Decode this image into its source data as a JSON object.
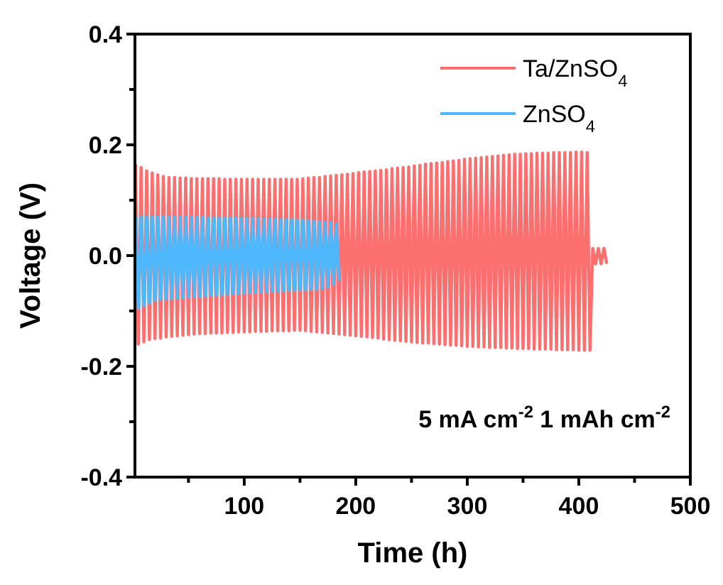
{
  "chart_data": {
    "type": "line",
    "xlabel": "Time (h)",
    "ylabel": "Voltage (V)",
    "xlim": [
      2,
      500
    ],
    "ylim": [
      -0.4,
      0.4
    ],
    "xticks": [
      {
        "value": 50,
        "label": null
      },
      100,
      {
        "value": 150,
        "label": null
      },
      200,
      {
        "value": 250,
        "label": null
      },
      300,
      {
        "value": 350,
        "label": null
      },
      400,
      {
        "value": 450,
        "label": null
      },
      500
    ],
    "yticks": [
      -0.4,
      {
        "value": -0.3,
        "label": null
      },
      -0.2,
      {
        "value": -0.1,
        "label": null
      },
      {
        "value": 0,
        "label": "0.0"
      },
      {
        "value": 0.1,
        "label": null
      },
      0.2,
      {
        "value": 0.3,
        "label": null
      },
      0.4
    ],
    "legend": "top right",
    "annotations": [
      "5 mA cm$^{-2}$ 1 mAh cm$^{-2}$"
    ],
    "series": [
      {
        "name": "Ta/ZnSO$_{4}$",
        "color": "#fb6f6f",
        "x": [
          2.5,
          5,
          7.5,
          10,
          12.5,
          15,
          17.5,
          20,
          22.5,
          25,
          27.5,
          30,
          32.5,
          35,
          37.5,
          40,
          42.5,
          45,
          47.5,
          50,
          52.5,
          55,
          57.5,
          60,
          62.5,
          65,
          67.5,
          70,
          72.5,
          75,
          77.5,
          80,
          82.5,
          85,
          87.5,
          90,
          92.5,
          95,
          97.5,
          100,
          102.5,
          105,
          107.5,
          110,
          112.5,
          115,
          117.5,
          120,
          122.5,
          125,
          127.5,
          130,
          132.5,
          135,
          137.5,
          140,
          142.5,
          145,
          147.5,
          150,
          152.5,
          155,
          157.5,
          160,
          162.5,
          165,
          167.5,
          170,
          172.5,
          175,
          177.5,
          180,
          182.5,
          185,
          187.5,
          190,
          192.5,
          195,
          197.5,
          200,
          202.5,
          205,
          207.5,
          210,
          212.5,
          215,
          217.5,
          220,
          222.5,
          225,
          227.5,
          230,
          232.5,
          235,
          237.5,
          240,
          242.5,
          245,
          247.5,
          250,
          252.5,
          255,
          257.5,
          260,
          262.5,
          265,
          267.5,
          270,
          272.5,
          275,
          277.5,
          280,
          282.5,
          285,
          287.5,
          290,
          292.5,
          295,
          297.5,
          300,
          302.5,
          305,
          307.5,
          310,
          312.5,
          315,
          317.5,
          320,
          322.5,
          325,
          327.5,
          330,
          332.5,
          335,
          337.5,
          340,
          342.5,
          345,
          347.5,
          350,
          352.5,
          355,
          357.5,
          360,
          362.5,
          365,
          367.5,
          370,
          372.5,
          375,
          377.5,
          380,
          382.5,
          385,
          387.5,
          390,
          392.5,
          395,
          397.5,
          400,
          402.5,
          405,
          407.5,
          410,
          412.5,
          415,
          417.5,
          420,
          422.5,
          425
        ],
        "values": [
          0.165,
          -0.16,
          0.159,
          -0.156,
          0.153,
          -0.152,
          0.149,
          -0.15,
          0.146,
          -0.149,
          0.143,
          -0.147,
          0.141,
          -0.146,
          0.141,
          -0.145,
          0.14,
          -0.144,
          0.14,
          -0.143,
          0.139,
          -0.142,
          0.139,
          -0.141,
          0.139,
          -0.141,
          0.139,
          -0.14,
          0.139,
          -0.14,
          0.139,
          -0.14,
          0.138,
          -0.139,
          0.138,
          -0.139,
          0.138,
          -0.138,
          0.138,
          -0.138,
          0.138,
          -0.138,
          0.138,
          -0.137,
          0.138,
          -0.137,
          0.138,
          -0.137,
          0.138,
          -0.136,
          0.138,
          -0.136,
          0.138,
          -0.136,
          0.138,
          -0.136,
          0.138,
          -0.135,
          0.138,
          -0.135,
          0.139,
          -0.136,
          0.14,
          -0.137,
          0.141,
          -0.138,
          0.141,
          -0.139,
          0.143,
          -0.14,
          0.144,
          -0.141,
          0.145,
          -0.142,
          0.146,
          -0.143,
          0.147,
          -0.144,
          0.148,
          -0.145,
          0.15,
          -0.146,
          0.151,
          -0.147,
          0.152,
          -0.148,
          0.153,
          -0.149,
          0.154,
          -0.151,
          0.155,
          -0.152,
          0.157,
          -0.153,
          0.158,
          -0.154,
          0.159,
          -0.155,
          0.16,
          -0.156,
          0.162,
          -0.157,
          0.163,
          -0.158,
          0.165,
          -0.158,
          0.166,
          -0.159,
          0.167,
          -0.16,
          0.168,
          -0.161,
          0.17,
          -0.162,
          0.171,
          -0.162,
          0.172,
          -0.163,
          0.174,
          -0.164,
          0.175,
          -0.164,
          0.176,
          -0.165,
          0.177,
          -0.165,
          0.178,
          -0.166,
          0.179,
          -0.166,
          0.18,
          -0.166,
          0.181,
          -0.167,
          0.182,
          -0.167,
          0.183,
          -0.168,
          0.183,
          -0.168,
          0.184,
          -0.168,
          0.184,
          -0.169,
          0.185,
          -0.169,
          0.185,
          -0.169,
          0.185,
          -0.169,
          0.186,
          -0.17,
          0.186,
          -0.17,
          0.186,
          -0.17,
          0.186,
          -0.17,
          0.187,
          -0.171,
          0.187,
          -0.171,
          0.186,
          -0.171,
          0.013,
          -0.015,
          0.013,
          -0.015,
          0.013,
          -0.015
        ]
      },
      {
        "name": "ZnSO$_{4}$",
        "color": "#4db8fb",
        "x": [
          2.5,
          5,
          7.5,
          10,
          12.5,
          15,
          17.5,
          20,
          22.5,
          25,
          27.5,
          30,
          32.5,
          35,
          37.5,
          40,
          42.5,
          45,
          47.5,
          50,
          52.5,
          55,
          57.5,
          60,
          62.5,
          65,
          67.5,
          70,
          72.5,
          75,
          77.5,
          80,
          82.5,
          85,
          87.5,
          90,
          92.5,
          95,
          97.5,
          100,
          102.5,
          105,
          107.5,
          110,
          112.5,
          115,
          117.5,
          120,
          122.5,
          125,
          127.5,
          130,
          132.5,
          135,
          137.5,
          140,
          142.5,
          145,
          147.5,
          150,
          152.5,
          155,
          157.5,
          160,
          162.5,
          165,
          167.5,
          170,
          172.5,
          175,
          177.5,
          180,
          182.5,
          185
        ],
        "values": [
          0.07,
          -0.095,
          0.07,
          -0.091,
          0.07,
          -0.086,
          0.07,
          -0.081,
          0.07,
          -0.08,
          0.07,
          -0.079,
          0.069,
          -0.078,
          0.069,
          -0.077,
          0.069,
          -0.076,
          0.069,
          -0.075,
          0.069,
          -0.074,
          0.069,
          -0.074,
          0.069,
          -0.073,
          0.068,
          -0.072,
          0.068,
          -0.072,
          0.068,
          -0.071,
          0.068,
          -0.07,
          0.068,
          -0.069,
          0.068,
          -0.069,
          0.067,
          -0.068,
          0.067,
          -0.067,
          0.067,
          -0.067,
          0.067,
          -0.066,
          0.066,
          -0.066,
          0.066,
          -0.065,
          0.066,
          -0.065,
          0.065,
          -0.064,
          0.065,
          -0.063,
          0.065,
          -0.063,
          0.064,
          -0.062,
          0.064,
          -0.062,
          0.063,
          -0.061,
          0.062,
          -0.061,
          0.061,
          -0.06,
          0.06,
          -0.057,
          0.059,
          -0.052,
          0.057,
          -0.046
        ]
      }
    ]
  }
}
